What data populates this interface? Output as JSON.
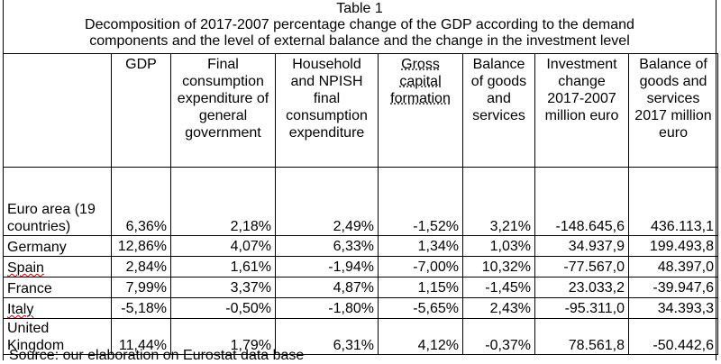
{
  "caption": {
    "line1": "Table 1",
    "line2": "Decomposition of 2017-2007 percentage change of the GDP according to the demand",
    "line3": "components and the level of external balance and the change in the investment level"
  },
  "columns": [
    {
      "label": ""
    },
    {
      "label": "GDP"
    },
    {
      "label": "Final consumption expenditure of general government"
    },
    {
      "label": "Household and NPISH final consumption expenditure"
    },
    {
      "label": "Gross capital formation"
    },
    {
      "label": "Balance of goods and services"
    },
    {
      "label": "Investment change 2017-2007 million euro"
    },
    {
      "label": "Balance of goods and services 2017 million euro"
    }
  ],
  "rows": [
    {
      "country": "Euro area (19 countries)",
      "values": [
        "6,36%",
        "2,18%",
        "2,49%",
        "-1,52%",
        "3,21%",
        "-148.645,6",
        "436.113,1"
      ]
    },
    {
      "country": "Germany",
      "values": [
        "12,86%",
        "4,07%",
        "6,33%",
        "1,34%",
        "1,03%",
        "34.937,9",
        "199.493,8"
      ]
    },
    {
      "country": "Spain",
      "values": [
        "2,84%",
        "1,61%",
        "-1,94%",
        "-7,00%",
        "10,32%",
        "-77.567,0",
        "48.397,0"
      ]
    },
    {
      "country": "France",
      "values": [
        "7,99%",
        "3,37%",
        "4,87%",
        "1,15%",
        "-1,45%",
        "23.033,2",
        "-39.947,6"
      ]
    },
    {
      "country": "Italy",
      "values": [
        "-5,18%",
        "-0,50%",
        "-1,80%",
        "-5,65%",
        "2,43%",
        "-95.311,0",
        "34.393,3"
      ]
    },
    {
      "country": "United Kingdom",
      "values": [
        "11,44%",
        "1,79%",
        "6,31%",
        "4,12%",
        "-0,37%",
        "78.561,8",
        "-50.442,6"
      ]
    }
  ],
  "source": "Source: our elaboration on Eurostat data base"
}
